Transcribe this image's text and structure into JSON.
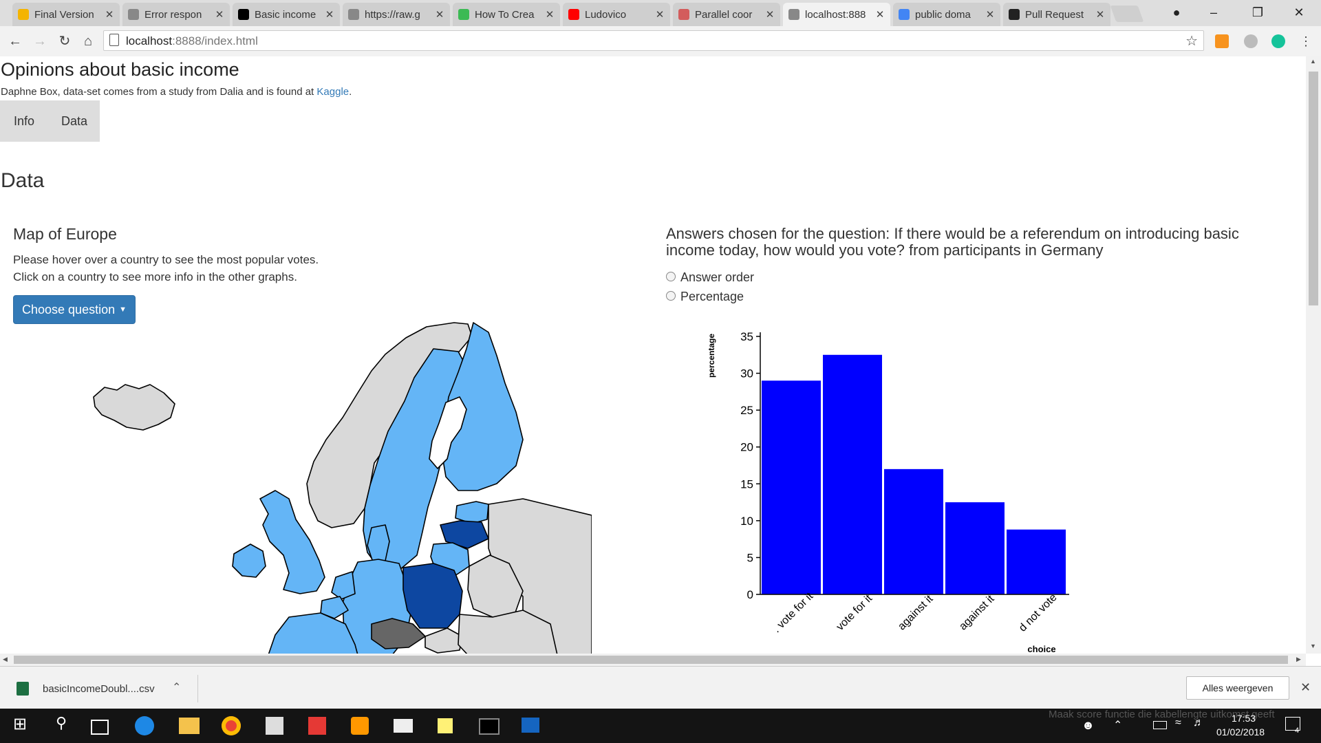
{
  "browser": {
    "tabs": [
      {
        "title": "Final Version",
        "color": "#f4b400"
      },
      {
        "title": "Error respon",
        "color": "#888888"
      },
      {
        "title": "Basic income",
        "color": "#000000"
      },
      {
        "title": "https://raw.g",
        "color": "#888888"
      },
      {
        "title": "How To Crea",
        "color": "#3cba54"
      },
      {
        "title": "Ludovico",
        "color": "#ff0000"
      },
      {
        "title": "Parallel coor",
        "color": "#d35c5c"
      },
      {
        "title": "localhost:888",
        "color": "#888888"
      },
      {
        "title": "public doma",
        "color": "#4285f4"
      },
      {
        "title": "Pull Request",
        "color": "#222222"
      }
    ],
    "url_host": "localhost",
    "url_rest": ":8888/index.html"
  },
  "page": {
    "title": "Opinions about basic income",
    "subtitle_prefix": "Daphne Box, data-set comes from a study from Dalia and is found at ",
    "subtitle_link": "Kaggle",
    "subtitle_suffix": ".",
    "nav": {
      "info": "Info",
      "data": "Data"
    },
    "section_heading": "Data",
    "map": {
      "heading": "Map of Europe",
      "line1": "Please hover over a country to see the most popular votes.",
      "line2": "Click on a country to see more info in the other graphs.",
      "button": "Choose question",
      "colors": {
        "light": "#64b5f6",
        "dark": "#0d47a1",
        "grey": "#d9d9d9",
        "darkgrey": "#666666"
      }
    },
    "answers": {
      "heading": "Answers chosen for the question: If there would be a referendum on introducing basic income today, how would you vote? from participants in Germany",
      "options": [
        "Answer order",
        "Percentage"
      ]
    }
  },
  "chart_data": {
    "type": "bar",
    "categories": [
      "I would vote for it",
      "I would probably vote for it",
      "I would probably vote against it",
      "I would vote against it",
      "I would not vote"
    ],
    "visible_tick_labels": [
      ". vote for it",
      "vote for it",
      "against it",
      "against it",
      "d not vote"
    ],
    "values": [
      29,
      32.5,
      17,
      12.5,
      8.8
    ],
    "ylabel": "percentage",
    "xlabel": "choice",
    "ylim": [
      0,
      35
    ],
    "yticks": [
      0,
      5,
      10,
      15,
      20,
      25,
      30,
      35
    ],
    "bar_color": "#0000ff"
  },
  "downloads": {
    "file": "basicIncomeDoubl....csv",
    "show_all": "Alles weergeven"
  },
  "taskbar": {
    "time": "17:53",
    "date": "01/02/2018",
    "notification_count": "4",
    "overlay_text": "Maak score functie die kabellengte uitkomst geeft"
  }
}
